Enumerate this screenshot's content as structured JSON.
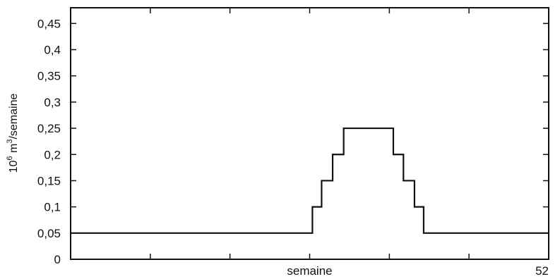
{
  "chart_data": {
    "type": "line",
    "step": true,
    "xlabel": "semaine",
    "ylabel": "10",
    "ylabel_sup1": "6",
    "ylabel_mid": " m",
    "ylabel_sup2": "3",
    "ylabel_end": "/semaine",
    "xlim": [
      0,
      52
    ],
    "ylim": [
      0,
      0.48
    ],
    "y_ticks": [
      0,
      0.05,
      0.1,
      0.15,
      0.2,
      0.25,
      0.3,
      0.35,
      0.4,
      0.45
    ],
    "y_tick_labels": [
      "0",
      "0,05",
      "0,1",
      "0,15",
      "0,2",
      "0,25",
      "0,3",
      "0,35",
      "0,4",
      "0,45"
    ],
    "x_ticks": [
      8.67,
      17.33,
      26,
      34.67,
      43.33,
      52
    ],
    "x_tick_labels": [
      {
        "value": 26,
        "text": "semaine"
      },
      {
        "value": 52,
        "text": "52"
      }
    ],
    "series": [
      {
        "steps": [
          {
            "x0": 0,
            "x1": 26.3,
            "y": 0.05
          },
          {
            "x0": 26.3,
            "x1": 27.3,
            "y": 0.1
          },
          {
            "x0": 27.3,
            "x1": 28.5,
            "y": 0.15
          },
          {
            "x0": 28.5,
            "x1": 29.7,
            "y": 0.2
          },
          {
            "x0": 29.7,
            "x1": 35.1,
            "y": 0.25
          },
          {
            "x0": 35.1,
            "x1": 36.2,
            "y": 0.2
          },
          {
            "x0": 36.2,
            "x1": 37.4,
            "y": 0.15
          },
          {
            "x0": 37.4,
            "x1": 38.4,
            "y": 0.1
          },
          {
            "x0": 38.4,
            "x1": 52,
            "y": 0.05
          }
        ]
      }
    ]
  }
}
